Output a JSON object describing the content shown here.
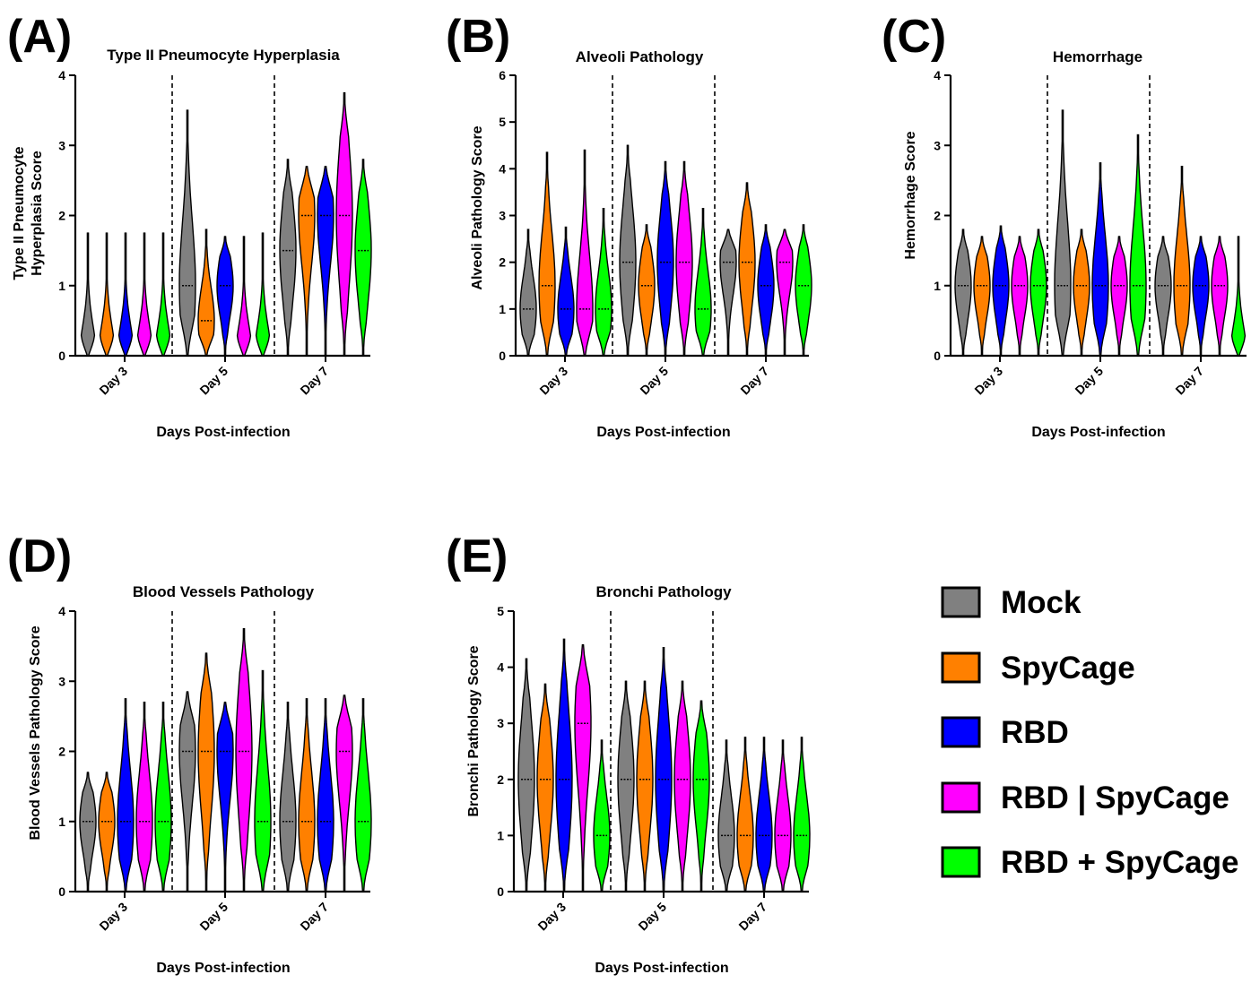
{
  "colors": {
    "Mock": "#808080",
    "SpyCage": "#ff8000",
    "RBD": "#0000ff",
    "RBD | SpyCage": "#ff00ff",
    "RBD + SpyCage": "#00ff00"
  },
  "legend": [
    "Mock",
    "SpyCage",
    "RBD",
    "RBD | SpyCage",
    "RBD + SpyCage"
  ],
  "chart_data": [
    {
      "panel": "(A)",
      "type": "violin",
      "title": "Type II Pneumocyte Hyperplasia",
      "ylabel": "Type II Pneumocyte Hyperplasia Score",
      "xlabel": "Days Post-infection",
      "ylim": [
        0,
        4
      ],
      "yticks": [
        0,
        1,
        2,
        3,
        4
      ],
      "categories": [
        "Day 3",
        "Day 5",
        "Day 7"
      ],
      "series": [
        {
          "name": "Mock",
          "medians": [
            0,
            1,
            1.5
          ],
          "max": [
            1.75,
            3.5,
            2.8
          ]
        },
        {
          "name": "SpyCage",
          "medians": [
            0,
            0.5,
            2
          ],
          "max": [
            1.75,
            1.8,
            2.7
          ]
        },
        {
          "name": "RBD",
          "medians": [
            0,
            1,
            2
          ],
          "max": [
            1.75,
            1.7,
            2.7
          ]
        },
        {
          "name": "RBD | SpyCage",
          "medians": [
            0,
            0,
            2
          ],
          "max": [
            1.75,
            1.7,
            3.75
          ]
        },
        {
          "name": "RBD + SpyCage",
          "medians": [
            0,
            0,
            1.5
          ],
          "max": [
            1.75,
            1.75,
            2.8
          ]
        }
      ]
    },
    {
      "panel": "(B)",
      "type": "violin",
      "title": "Alveoli Pathology",
      "ylabel": "Alveoli Pathology Score",
      "xlabel": "Days Post-infection",
      "ylim": [
        0,
        6
      ],
      "yticks": [
        0,
        1,
        2,
        3,
        4,
        5,
        6
      ],
      "categories": [
        "Day 3",
        "Day 5",
        "Day 7"
      ],
      "series": [
        {
          "name": "Mock",
          "medians": [
            1,
            2,
            2
          ],
          "max": [
            2.7,
            4.5,
            2.7
          ]
        },
        {
          "name": "SpyCage",
          "medians": [
            1.5,
            1.5,
            2
          ],
          "max": [
            4.35,
            2.8,
            3.7
          ]
        },
        {
          "name": "RBD",
          "medians": [
            1,
            2,
            1.5
          ],
          "max": [
            2.75,
            4.15,
            2.8
          ]
        },
        {
          "name": "RBD | SpyCage",
          "medians": [
            1,
            2,
            2
          ],
          "max": [
            4.4,
            4.15,
            2.7
          ]
        },
        {
          "name": "RBD + SpyCage",
          "medians": [
            1,
            1,
            1.5
          ],
          "max": [
            3.15,
            3.15,
            2.8
          ]
        }
      ]
    },
    {
      "panel": "(C)",
      "type": "violin",
      "title": "Hemorrhage",
      "ylabel": "Hemorrhage Score",
      "xlabel": "Days Post-infection",
      "ylim": [
        0,
        4
      ],
      "yticks": [
        0,
        1,
        2,
        3,
        4
      ],
      "categories": [
        "Day 3",
        "Day 5",
        "Day 7"
      ],
      "series": [
        {
          "name": "Mock",
          "medians": [
            1,
            1,
            1
          ],
          "max": [
            1.8,
            3.5,
            1.7
          ]
        },
        {
          "name": "SpyCage",
          "medians": [
            1,
            1,
            1
          ],
          "max": [
            1.7,
            1.8,
            2.7
          ]
        },
        {
          "name": "RBD",
          "medians": [
            1,
            1,
            1
          ],
          "max": [
            1.85,
            2.75,
            1.7
          ]
        },
        {
          "name": "RBD | SpyCage",
          "medians": [
            1,
            1,
            1
          ],
          "max": [
            1.7,
            1.7,
            1.7
          ]
        },
        {
          "name": "RBD + SpyCage",
          "medians": [
            1,
            1,
            0
          ],
          "max": [
            1.8,
            3.15,
            1.7
          ]
        }
      ]
    },
    {
      "panel": "(D)",
      "type": "violin",
      "title": "Blood Vessels Pathology",
      "ylabel": "Blood Vessels Pathology Score",
      "xlabel": "Days Post-infection",
      "ylim": [
        0,
        4
      ],
      "yticks": [
        0,
        1,
        2,
        3,
        4
      ],
      "categories": [
        "Day 3",
        "Day 5",
        "Day 7"
      ],
      "series": [
        {
          "name": "Mock",
          "medians": [
            1,
            2,
            1
          ],
          "max": [
            1.7,
            2.85,
            2.7
          ]
        },
        {
          "name": "SpyCage",
          "medians": [
            1,
            2,
            1
          ],
          "max": [
            1.7,
            3.4,
            2.75
          ]
        },
        {
          "name": "RBD",
          "medians": [
            1,
            2,
            1
          ],
          "max": [
            2.75,
            2.7,
            2.75
          ]
        },
        {
          "name": "RBD | SpyCage",
          "medians": [
            1,
            2,
            2
          ],
          "max": [
            2.7,
            3.75,
            2.8
          ]
        },
        {
          "name": "RBD + SpyCage",
          "medians": [
            1,
            1,
            1
          ],
          "max": [
            2.7,
            3.15,
            2.75
          ]
        }
      ]
    },
    {
      "panel": "(E)",
      "type": "violin",
      "title": "Bronchi Pathology",
      "ylabel": "Bronchi Pathology Score",
      "xlabel": "Days Post-infection",
      "ylim": [
        0,
        5
      ],
      "yticks": [
        0,
        1,
        2,
        3,
        4,
        5
      ],
      "categories": [
        "Day 3",
        "Day 5",
        "Day 7"
      ],
      "series": [
        {
          "name": "Mock",
          "medians": [
            2,
            2,
            1
          ],
          "max": [
            4.15,
            3.75,
            2.7
          ]
        },
        {
          "name": "SpyCage",
          "medians": [
            2,
            2,
            1
          ],
          "max": [
            3.7,
            3.75,
            2.75
          ]
        },
        {
          "name": "RBD",
          "medians": [
            2,
            2,
            1
          ],
          "max": [
            4.5,
            4.35,
            2.75
          ]
        },
        {
          "name": "RBD | SpyCage",
          "medians": [
            3,
            2,
            1
          ],
          "max": [
            4.4,
            3.75,
            2.7
          ]
        },
        {
          "name": "RBD + SpyCage",
          "medians": [
            1,
            2,
            1
          ],
          "max": [
            2.7,
            3.4,
            2.75
          ]
        }
      ]
    }
  ]
}
